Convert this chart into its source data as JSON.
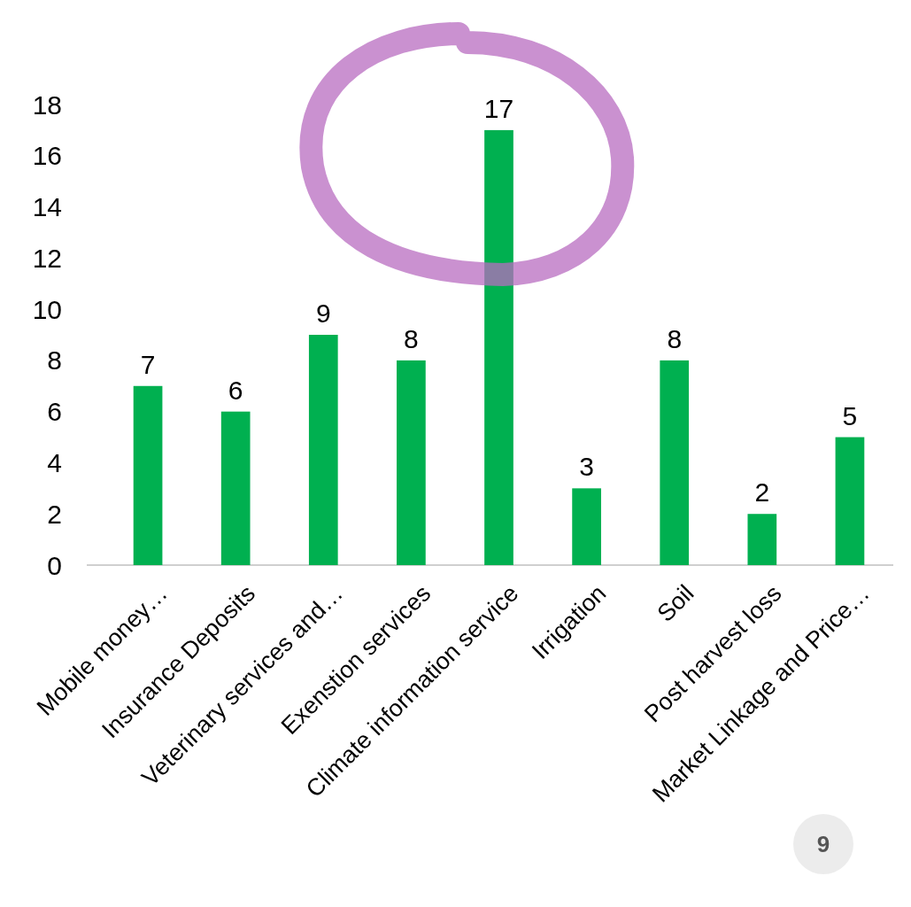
{
  "chart_data": {
    "type": "bar",
    "categories": [
      "Mobile money…",
      "Insurance Deposits",
      "Veterinary services and…",
      "Exenstion services",
      "Climate information service",
      "Irrigation",
      "Soil",
      "Post harvest loss",
      "Market Linkage and Price…"
    ],
    "values": [
      7,
      6,
      9,
      8,
      17,
      3,
      8,
      2,
      5
    ],
    "color": "#00b050",
    "ylim": [
      0,
      18
    ],
    "yticks": [
      0,
      2,
      4,
      6,
      8,
      10,
      12,
      14,
      16,
      18
    ],
    "grid": false,
    "data_labels": true,
    "annotations": [
      "9"
    ]
  }
}
